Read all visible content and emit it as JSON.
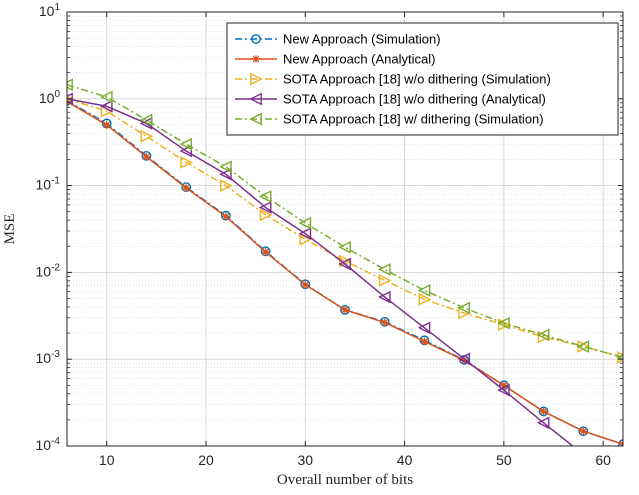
{
  "chart_data": {
    "type": "line",
    "xlabel": "Overall number of bits",
    "ylabel": "MSE",
    "xlim": [
      6,
      62
    ],
    "ylim": [
      0.0001,
      10
    ],
    "yscale": "log",
    "grid": true,
    "legend_position": "top-right",
    "x_ticks": [
      10,
      20,
      30,
      40,
      50,
      60
    ],
    "x_tick_labels": [
      "10",
      "20",
      "30",
      "40",
      "50",
      "60"
    ],
    "y_ticks": [
      0.0001,
      0.001,
      0.01,
      0.1,
      1,
      10
    ],
    "y_tick_labels": [
      {
        "base": "10",
        "exp": "-4"
      },
      {
        "base": "10",
        "exp": "-3"
      },
      {
        "base": "10",
        "exp": "-2"
      },
      {
        "base": "10",
        "exp": "-1"
      },
      {
        "base": "10",
        "exp": "0"
      },
      {
        "base": "10",
        "exp": "1"
      }
    ],
    "series": [
      {
        "name": "New Approach (Simulation)",
        "color": "#0072BD",
        "line": "dashdot",
        "marker": "circle",
        "x": [
          6,
          10,
          14,
          18,
          22,
          26,
          30,
          34,
          38,
          42,
          46,
          50,
          54,
          58,
          62
        ],
        "y": [
          0.95,
          0.52,
          0.22,
          0.096,
          0.045,
          0.0175,
          0.0073,
          0.0037,
          0.0027,
          0.00165,
          0.00098,
          0.0005,
          0.00025,
          0.000148,
          0.000105
        ]
      },
      {
        "name": "New Approach (Analytical)",
        "color": "#D95319",
        "line": "solid",
        "marker": "asterisk",
        "x": [
          6,
          10,
          14,
          18,
          22,
          26,
          30,
          34,
          38,
          42,
          46,
          50,
          54,
          58,
          62
        ],
        "y": [
          0.93,
          0.5,
          0.215,
          0.094,
          0.044,
          0.0172,
          0.0072,
          0.0037,
          0.00265,
          0.0016,
          0.00097,
          0.0005,
          0.00025,
          0.000148,
          0.000105
        ]
      },
      {
        "name": "SOTA Approach [18] w/o dithering (Simulation)",
        "color": "#EDB120",
        "line": "dashdot",
        "marker": "triangle-right",
        "x": [
          6,
          10,
          14,
          18,
          22,
          26,
          30,
          34,
          38,
          42,
          46,
          50,
          54,
          58,
          62
        ],
        "y": [
          1.0,
          0.72,
          0.37,
          0.185,
          0.1,
          0.046,
          0.024,
          0.0135,
          0.0081,
          0.0049,
          0.0034,
          0.0025,
          0.0018,
          0.0014,
          0.00105
        ]
      },
      {
        "name": "SOTA Approach [18] w/o dithering (Analytical)",
        "color": "#7E2F8E",
        "line": "solid",
        "marker": "triangle-left",
        "x": [
          6,
          10,
          14,
          18,
          22,
          26,
          30,
          34,
          38,
          42,
          46,
          50,
          54,
          58,
          62
        ],
        "y": [
          1.0,
          0.82,
          0.52,
          0.25,
          0.135,
          0.056,
          0.028,
          0.0125,
          0.0052,
          0.0023,
          0.00101,
          0.00044,
          0.000185,
          8e-05,
          3.5e-05
        ]
      },
      {
        "name": "SOTA Approach [18] w/ dithering (Simulation)",
        "color": "#77AC30",
        "line": "dashdot",
        "marker": "triangle-left",
        "x": [
          6,
          10,
          14,
          18,
          22,
          26,
          30,
          34,
          38,
          42,
          46,
          50,
          54,
          58,
          62
        ],
        "y": [
          1.45,
          1.05,
          0.57,
          0.3,
          0.165,
          0.075,
          0.037,
          0.0195,
          0.0108,
          0.0062,
          0.0039,
          0.0026,
          0.0019,
          0.0014,
          0.00105
        ]
      }
    ]
  }
}
